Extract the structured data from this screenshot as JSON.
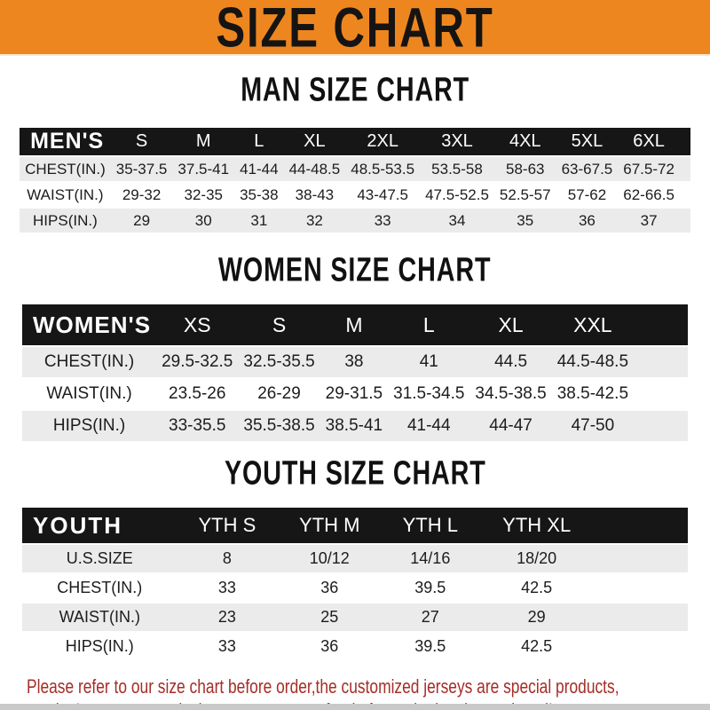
{
  "banner": {
    "title": "SIZE CHART",
    "bg_color": "#EE8620"
  },
  "colors": {
    "header_bar": "#161616",
    "shaded_row": "#EBEBEB",
    "footer_text": "#A52E28",
    "banner_text": "#161412"
  },
  "tables": [
    {
      "id": "men",
      "title": "MAN SIZE CHART",
      "header": [
        "MEN'S",
        "S",
        "M",
        "L",
        "XL",
        "2XL",
        "3XL",
        "4XL",
        "5XL",
        "6XL"
      ],
      "rows": [
        [
          "CHEST(IN.)",
          "35-37.5",
          "37.5-41",
          "41-44",
          "44-48.5",
          "48.5-53.5",
          "53.5-58",
          "58-63",
          "63-67.5",
          "67.5-72"
        ],
        [
          "WAIST(IN.)",
          "29-32",
          "32-35",
          "35-38",
          "38-43",
          "43-47.5",
          "47.5-52.5",
          "52.5-57",
          "57-62",
          "62-66.5"
        ],
        [
          "HIPS(IN.)",
          "29",
          "30",
          "31",
          "32",
          "33",
          "34",
          "35",
          "36",
          "37"
        ]
      ]
    },
    {
      "id": "women",
      "title": "WOMEN SIZE CHART",
      "header": [
        "WOMEN'S",
        "XS",
        "S",
        "M",
        "L",
        "XL",
        "XXL"
      ],
      "rows": [
        [
          "CHEST(IN.)",
          "29.5-32.5",
          "32.5-35.5",
          "38",
          "41",
          "44.5",
          "44.5-48.5"
        ],
        [
          "WAIST(IN.)",
          "23.5-26",
          "26-29",
          "29-31.5",
          "31.5-34.5",
          "34.5-38.5",
          "38.5-42.5"
        ],
        [
          "HIPS(IN.)",
          "33-35.5",
          "35.5-38.5",
          "38.5-41",
          "41-44",
          "44-47",
          "47-50"
        ]
      ]
    },
    {
      "id": "youth",
      "title": "YOUTH SIZE CHART",
      "header": [
        "YOUTH",
        "YTH S",
        "YTH M",
        "YTH L",
        "YTH XL"
      ],
      "rows": [
        [
          "U.S.SIZE",
          "8",
          "10/12",
          "14/16",
          "18/20"
        ],
        [
          "CHEST(IN.)",
          "33",
          "36",
          "39.5",
          "42.5"
        ],
        [
          "WAIST(IN.)",
          "23",
          "25",
          "27",
          "29"
        ],
        [
          "HIPS(IN.)",
          "33",
          "36",
          "39.5",
          "42.5"
        ]
      ]
    }
  ],
  "footer": {
    "line1": "Please refer to our size chart before order,the customized jerseys are special products,",
    "line2": "we don't accept cancel, change, teturn or refund after order has been placed!"
  }
}
